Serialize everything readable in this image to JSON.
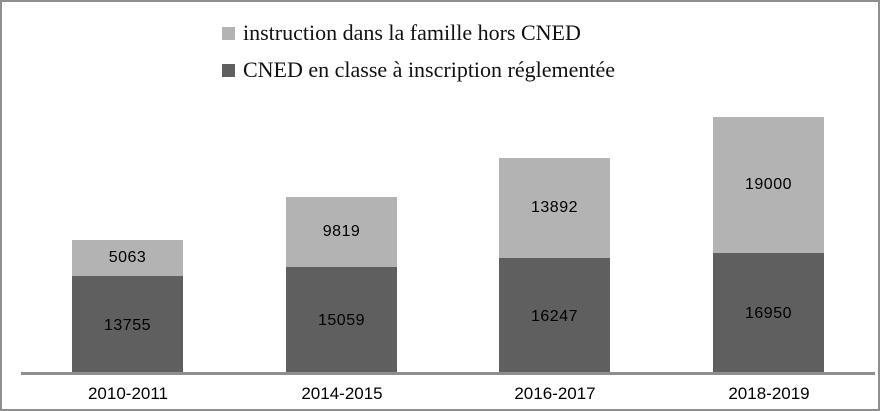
{
  "chart_data": {
    "type": "bar",
    "stacked": true,
    "categories": [
      "2010-2011",
      "2014-2015",
      "2016-2017",
      "2018-2019"
    ],
    "series": [
      {
        "name": "CNED en classe à inscription réglementée",
        "color": "#5f5f5f",
        "values": [
          13755,
          15059,
          16247,
          16950
        ]
      },
      {
        "name": "instruction dans la famille hors CNED",
        "color": "#b3b3b3",
        "values": [
          5063,
          9819,
          13892,
          19000
        ]
      }
    ],
    "title": "",
    "xlabel": "",
    "ylabel": "",
    "ylim": [
      0,
      40000
    ],
    "grid": false,
    "legend_position": "top",
    "data_labels": true,
    "axis_color": "#8e8e8e",
    "border_color": "#8e8e8e",
    "background": "#ffffff"
  }
}
